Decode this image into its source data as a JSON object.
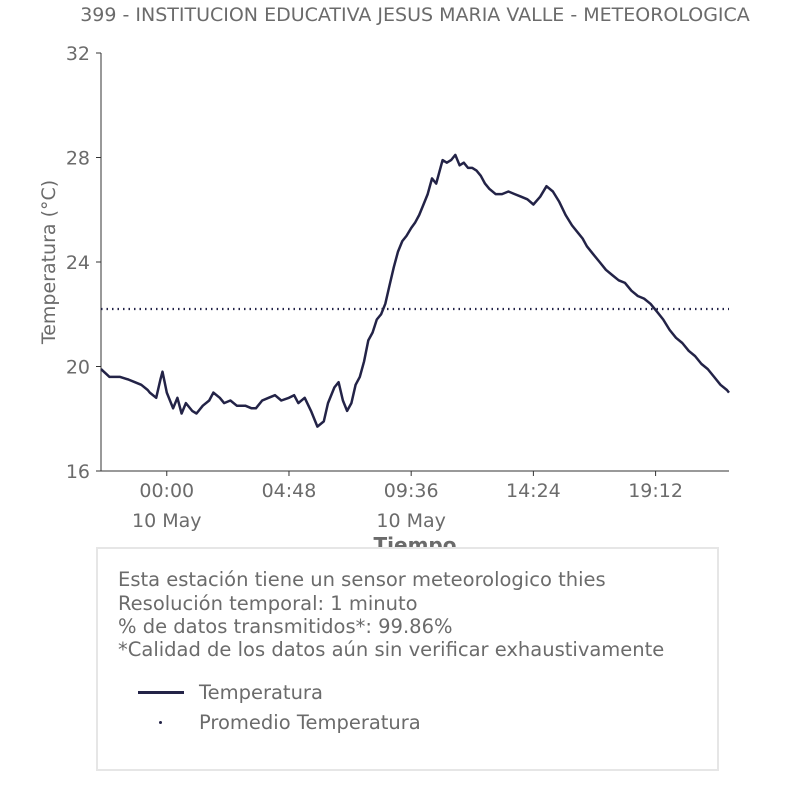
{
  "chart_data": {
    "type": "line",
    "title": "399 - INSTITUCION EDUCATIVA JESUS MARIA VALLE - METEOROLOGICA",
    "xlabel": "Tiempo",
    "ylabel": "Temperatura (°C)",
    "ylim": [
      16,
      32
    ],
    "yticks": [
      "16",
      "20",
      "24",
      "28",
      "32"
    ],
    "xlim": [
      "2024-05-09T21:25",
      "2024-05-10T22:05"
    ],
    "xticks": [
      {
        "value": "2024-05-10T00:00",
        "label": "00:00",
        "sublabel": "10 May"
      },
      {
        "value": "2024-05-10T04:48",
        "label": "04:48",
        "sublabel": ""
      },
      {
        "value": "2024-05-10T09:36",
        "label": "09:36",
        "sublabel": "10 May"
      },
      {
        "value": "2024-05-10T14:24",
        "label": "14:24",
        "sublabel": ""
      },
      {
        "value": "2024-05-10T19:12",
        "label": "19:12",
        "sublabel": ""
      }
    ],
    "grid": false,
    "series": [
      {
        "name": "Temperatura",
        "color": "#232347",
        "style": "solid",
        "x": [
          "2024-05-09T21:25",
          "2024-05-09T21:45",
          "2024-05-09T22:10",
          "2024-05-09T22:30",
          "2024-05-09T22:45",
          "2024-05-09T23:00",
          "2024-05-09T23:15",
          "2024-05-09T23:20",
          "2024-05-09T23:35",
          "2024-05-09T23:45",
          "2024-05-09T23:50",
          "2024-05-10T00:00",
          "2024-05-10T00:15",
          "2024-05-10T00:25",
          "2024-05-10T00:35",
          "2024-05-10T00:45",
          "2024-05-10T01:00",
          "2024-05-10T01:10",
          "2024-05-10T01:25",
          "2024-05-10T01:40",
          "2024-05-10T01:50",
          "2024-05-10T02:05",
          "2024-05-10T02:15",
          "2024-05-10T02:30",
          "2024-05-10T02:45",
          "2024-05-10T03:05",
          "2024-05-10T03:20",
          "2024-05-10T03:30",
          "2024-05-10T03:45",
          "2024-05-10T04:00",
          "2024-05-10T04:15",
          "2024-05-10T04:30",
          "2024-05-10T04:48",
          "2024-05-10T05:00",
          "2024-05-10T05:10",
          "2024-05-10T05:25",
          "2024-05-10T05:40",
          "2024-05-10T05:55",
          "2024-05-10T06:10",
          "2024-05-10T06:20",
          "2024-05-10T06:35",
          "2024-05-10T06:45",
          "2024-05-10T06:55",
          "2024-05-10T07:05",
          "2024-05-10T07:15",
          "2024-05-10T07:25",
          "2024-05-10T07:35",
          "2024-05-10T07:45",
          "2024-05-10T07:55",
          "2024-05-10T08:05",
          "2024-05-10T08:15",
          "2024-05-10T08:25",
          "2024-05-10T08:35",
          "2024-05-10T08:45",
          "2024-05-10T08:55",
          "2024-05-10T09:05",
          "2024-05-10T09:15",
          "2024-05-10T09:25",
          "2024-05-10T09:36",
          "2024-05-10T09:45",
          "2024-05-10T09:55",
          "2024-05-10T10:05",
          "2024-05-10T10:15",
          "2024-05-10T10:25",
          "2024-05-10T10:35",
          "2024-05-10T10:50",
          "2024-05-10T11:00",
          "2024-05-10T11:10",
          "2024-05-10T11:20",
          "2024-05-10T11:30",
          "2024-05-10T11:40",
          "2024-05-10T11:50",
          "2024-05-10T12:00",
          "2024-05-10T12:10",
          "2024-05-10T12:20",
          "2024-05-10T12:30",
          "2024-05-10T12:40",
          "2024-05-10T12:55",
          "2024-05-10T13:10",
          "2024-05-10T13:25",
          "2024-05-10T13:40",
          "2024-05-10T13:55",
          "2024-05-10T14:10",
          "2024-05-10T14:24",
          "2024-05-10T14:40",
          "2024-05-10T14:55",
          "2024-05-10T15:10",
          "2024-05-10T15:25",
          "2024-05-10T15:40",
          "2024-05-10T15:55",
          "2024-05-10T16:10",
          "2024-05-10T16:20",
          "2024-05-10T16:30",
          "2024-05-10T16:45",
          "2024-05-10T17:00",
          "2024-05-10T17:15",
          "2024-05-10T17:30",
          "2024-05-10T17:45",
          "2024-05-10T18:00",
          "2024-05-10T18:15",
          "2024-05-10T18:30",
          "2024-05-10T18:45",
          "2024-05-10T19:00",
          "2024-05-10T19:15",
          "2024-05-10T19:30",
          "2024-05-10T19:45",
          "2024-05-10T20:00",
          "2024-05-10T20:15",
          "2024-05-10T20:30",
          "2024-05-10T20:45",
          "2024-05-10T21:00",
          "2024-05-10T21:15",
          "2024-05-10T21:30",
          "2024-05-10T21:45",
          "2024-05-10T22:00",
          "2024-05-10T22:05"
        ],
        "values": [
          19.9,
          19.6,
          19.6,
          19.5,
          19.4,
          19.3,
          19.1,
          19.0,
          18.8,
          19.5,
          19.8,
          19.0,
          18.4,
          18.8,
          18.2,
          18.6,
          18.3,
          18.2,
          18.5,
          18.7,
          19.0,
          18.8,
          18.6,
          18.7,
          18.5,
          18.5,
          18.4,
          18.4,
          18.7,
          18.8,
          18.9,
          18.7,
          18.8,
          18.9,
          18.6,
          18.8,
          18.3,
          17.7,
          17.9,
          18.6,
          19.2,
          19.4,
          18.7,
          18.3,
          18.6,
          19.3,
          19.6,
          20.2,
          21.0,
          21.3,
          21.8,
          22.0,
          22.4,
          23.1,
          23.8,
          24.4,
          24.8,
          25.0,
          25.3,
          25.5,
          25.8,
          26.2,
          26.6,
          27.2,
          27.0,
          27.9,
          27.8,
          27.9,
          28.1,
          27.7,
          27.8,
          27.6,
          27.6,
          27.5,
          27.3,
          27.0,
          26.8,
          26.6,
          26.6,
          26.7,
          26.6,
          26.5,
          26.4,
          26.2,
          26.5,
          26.9,
          26.7,
          26.3,
          25.8,
          25.4,
          25.1,
          24.9,
          24.6,
          24.3,
          24.0,
          23.7,
          23.5,
          23.3,
          23.2,
          22.9,
          22.7,
          22.6,
          22.4,
          22.1,
          21.8,
          21.4,
          21.1,
          20.9,
          20.6,
          20.4,
          20.1,
          19.9,
          19.6,
          19.3,
          19.1,
          19.0
        ]
      },
      {
        "name": "Promedio Temperatura",
        "color": "#232347",
        "style": "dotted",
        "value": 22.2
      }
    ]
  },
  "info": {
    "lines": [
      "Esta estación tiene un sensor meteorologico thies",
      "Resolución temporal: 1 minuto",
      "% de datos transmitidos*: 99.86%",
      "*Calidad de los datos aún sin verificar exhaustivamente"
    ]
  },
  "legend": {
    "items": [
      {
        "label": "Temperatura"
      },
      {
        "label": "Promedio Temperatura"
      }
    ]
  }
}
